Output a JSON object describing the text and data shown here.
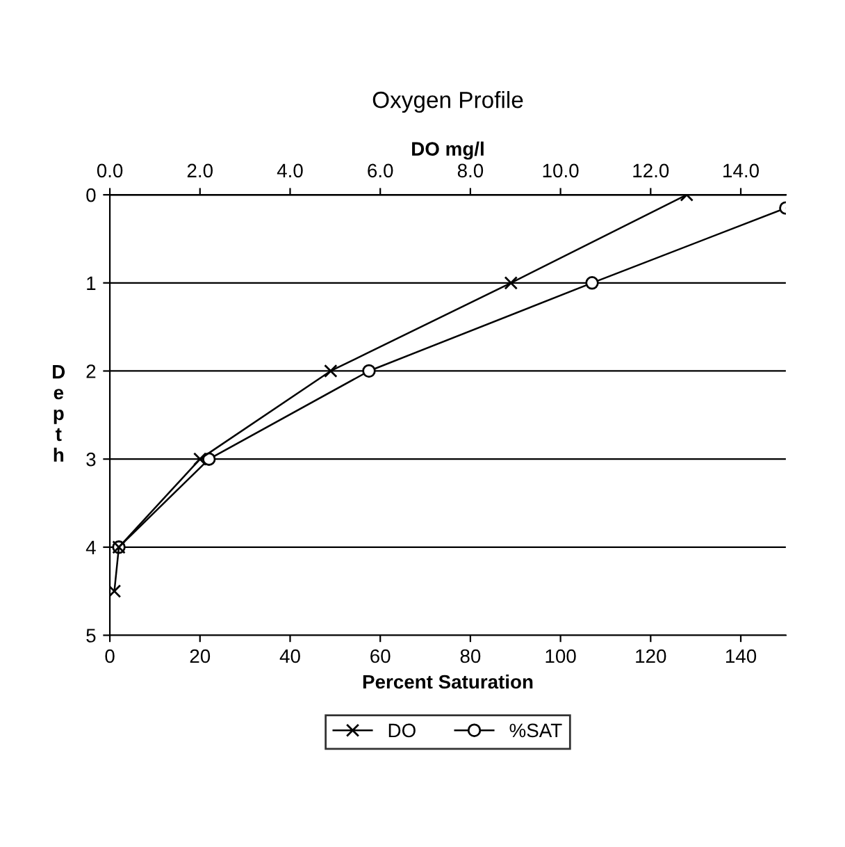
{
  "chart_data": {
    "type": "line",
    "title": "Oxygen Profile",
    "xlabel": "Percent Saturation",
    "x2label": "DO mg/l",
    "ylabel": "Depth",
    "series": [
      {
        "name": "DO",
        "color": "#000000",
        "axis": "x2",
        "marker": "cross",
        "x": [
          12.8,
          8.9,
          4.9,
          2.0,
          0.2,
          0.1
        ],
        "values": [
          0,
          1,
          2,
          3,
          4,
          4.5
        ]
      },
      {
        "name": "%SAT",
        "color": "#000000",
        "marker": "circle",
        "x": [
          150,
          107,
          57.5,
          22,
          2
        ],
        "values": [
          0.15,
          1,
          2,
          3,
          4
        ]
      }
    ],
    "xlim": [
      0,
      150
    ],
    "xticks": [
      0,
      20,
      40,
      60,
      80,
      100,
      120,
      140
    ],
    "x2lim": [
      0,
      15
    ],
    "x2ticks": [
      {
        "value": 0,
        "label": "0.0"
      },
      {
        "value": 2,
        "label": "2.0"
      },
      {
        "value": 4,
        "label": "4.0"
      },
      {
        "value": 6,
        "label": "6.0"
      },
      {
        "value": 8,
        "label": "8.0"
      },
      {
        "value": 10,
        "label": "10.0"
      },
      {
        "value": 12,
        "label": "12.0"
      },
      {
        "value": 14,
        "label": "14.0"
      }
    ],
    "ylim": [
      5,
      0
    ],
    "yticks": [
      0,
      1,
      2,
      3,
      4,
      5
    ],
    "grid": "y",
    "legend": "bottom",
    "line_style": "solid"
  }
}
